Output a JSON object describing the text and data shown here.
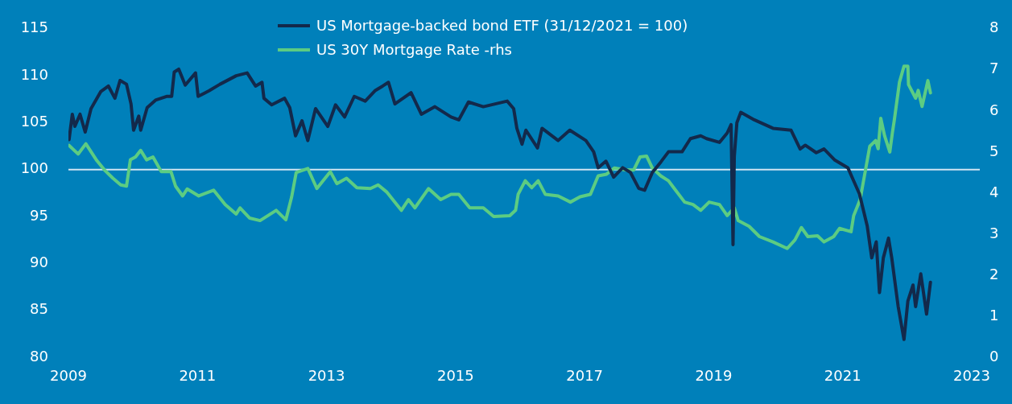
{
  "chart_data": {
    "type": "line",
    "legend": "top",
    "grid": false,
    "marker": "none",
    "line_style": "solid",
    "xlim": [
      2009,
      2023
    ],
    "xticks": [
      2009,
      2011,
      2013,
      2015,
      2017,
      2019,
      2021,
      2023
    ],
    "ylim": [
      80,
      115
    ],
    "yticks": [
      80,
      85,
      90,
      95,
      100,
      105,
      110,
      115
    ],
    "y2lim": [
      0,
      8
    ],
    "y2ticks": [
      0,
      1,
      2,
      3,
      4,
      5,
      6,
      7,
      8
    ],
    "ref_lines": [
      {
        "axis": "y",
        "value": 100,
        "color": "#d0e4f2"
      }
    ],
    "series": [
      {
        "name": "US Mortgage-backed bond ETF (31/12/2021 = 100)",
        "color": "#13294b",
        "x": [
          2009.01,
          2009.06,
          2009.1,
          2009.18,
          2009.26,
          2009.35,
          2009.5,
          2009.62,
          2009.72,
          2009.8,
          2009.9,
          2009.97,
          2010.01,
          2010.09,
          2010.12,
          2010.22,
          2010.35,
          2010.52,
          2010.6,
          2010.64,
          2010.71,
          2010.81,
          2010.97,
          2011.01,
          2011.18,
          2011.35,
          2011.6,
          2011.77,
          2011.9,
          2012.0,
          2012.03,
          2012.15,
          2012.35,
          2012.43,
          2012.52,
          2012.62,
          2012.71,
          2012.83,
          2013.02,
          2013.14,
          2013.28,
          2013.43,
          2013.6,
          2013.75,
          2013.87,
          2013.96,
          2014.06,
          2014.31,
          2014.47,
          2014.68,
          2014.93,
          2015.05,
          2015.2,
          2015.43,
          2015.8,
          2015.9,
          2015.95,
          2016.03,
          2016.09,
          2016.27,
          2016.34,
          2016.59,
          2016.77,
          2017.02,
          2017.14,
          2017.21,
          2017.33,
          2017.45,
          2017.59,
          2017.71,
          2017.84,
          2017.93,
          2018.05,
          2018.18,
          2018.3,
          2018.51,
          2018.64,
          2018.8,
          2018.89,
          2019.09,
          2019.21,
          2019.27,
          2019.3,
          2019.32,
          2019.36,
          2019.42,
          2019.63,
          2019.92,
          2020.2,
          2020.34,
          2020.42,
          2020.59,
          2020.71,
          2020.88,
          2021.08,
          2021.17,
          2021.26,
          2021.38,
          2021.45,
          2021.52,
          2021.57,
          2021.63,
          2021.71,
          2021.76,
          2021.86,
          2021.95,
          2022.01,
          2022.09,
          2022.13,
          2022.21,
          2022.3,
          2022.36
        ],
        "values": [
          103.2,
          105.9,
          104.6,
          105.9,
          104.0,
          106.5,
          108.3,
          108.9,
          107.6,
          109.5,
          109.1,
          107.0,
          104.2,
          105.7,
          104.2,
          106.6,
          107.4,
          107.8,
          107.8,
          110.4,
          110.7,
          109.0,
          110.3,
          107.8,
          108.4,
          109.1,
          110.0,
          110.3,
          108.9,
          109.3,
          107.6,
          106.9,
          107.6,
          106.6,
          103.6,
          105.2,
          103.1,
          106.5,
          104.6,
          106.9,
          105.6,
          107.8,
          107.3,
          108.4,
          108.9,
          109.3,
          107.0,
          108.2,
          105.9,
          106.7,
          105.6,
          105.3,
          107.2,
          106.7,
          107.3,
          106.5,
          104.4,
          102.7,
          104.2,
          102.3,
          104.4,
          103.1,
          104.2,
          103.1,
          101.9,
          100.2,
          100.9,
          99.2,
          100.2,
          99.7,
          98.0,
          97.8,
          99.7,
          100.8,
          101.9,
          101.9,
          103.3,
          103.6,
          103.3,
          102.9,
          103.9,
          104.8,
          92.0,
          101.4,
          105.0,
          106.1,
          105.3,
          104.4,
          104.2,
          102.2,
          102.6,
          101.8,
          102.2,
          101.0,
          100.2,
          98.8,
          97.4,
          94.0,
          90.6,
          92.3,
          86.9,
          90.6,
          92.7,
          90.6,
          85.4,
          81.9,
          86.0,
          87.7,
          85.4,
          88.9,
          84.6,
          88.0
        ]
      },
      {
        "name": "US 30Y Mortgage Rate -rhs",
        "color": "#5ccc82",
        "axis": "y2",
        "x": [
          2009.01,
          2009.15,
          2009.27,
          2009.44,
          2009.56,
          2009.69,
          2009.81,
          2009.9,
          2009.96,
          2010.04,
          2010.12,
          2010.21,
          2010.31,
          2010.44,
          2010.59,
          2010.66,
          2010.77,
          2010.84,
          2011.02,
          2011.25,
          2011.43,
          2011.6,
          2011.66,
          2011.81,
          2011.97,
          2012.22,
          2012.37,
          2012.46,
          2012.53,
          2012.71,
          2012.85,
          2013.06,
          2013.16,
          2013.31,
          2013.47,
          2013.68,
          2013.8,
          2013.93,
          2014.16,
          2014.27,
          2014.37,
          2014.58,
          2014.77,
          2014.93,
          2015.05,
          2015.22,
          2015.43,
          2015.59,
          2015.84,
          2015.93,
          2015.97,
          2016.08,
          2016.18,
          2016.28,
          2016.39,
          2016.59,
          2016.78,
          2016.93,
          2017.09,
          2017.21,
          2017.34,
          2017.46,
          2017.64,
          2017.76,
          2017.86,
          2017.96,
          2018.05,
          2018.18,
          2018.3,
          2018.39,
          2018.55,
          2018.68,
          2018.8,
          2018.93,
          2019.09,
          2019.21,
          2019.32,
          2019.38,
          2019.55,
          2019.71,
          2019.92,
          2020.14,
          2020.26,
          2020.36,
          2020.46,
          2020.61,
          2020.71,
          2020.86,
          2020.95,
          2021.13,
          2021.17,
          2021.27,
          2021.36,
          2021.42,
          2021.51,
          2021.55,
          2021.59,
          2021.65,
          2021.73,
          2021.77,
          2021.8,
          2021.88,
          2021.95,
          2022.01,
          2022.02,
          2022.13,
          2022.17,
          2022.23,
          2022.32,
          2022.36
        ],
        "values": [
          5.16,
          4.95,
          5.2,
          4.79,
          4.56,
          4.36,
          4.2,
          4.17,
          4.81,
          4.88,
          5.04,
          4.81,
          4.88,
          4.52,
          4.52,
          4.17,
          3.93,
          4.1,
          3.93,
          4.07,
          3.72,
          3.49,
          3.64,
          3.39,
          3.33,
          3.58,
          3.35,
          3.91,
          4.5,
          4.6,
          4.11,
          4.52,
          4.23,
          4.36,
          4.13,
          4.11,
          4.2,
          4.03,
          3.58,
          3.84,
          3.64,
          4.11,
          3.84,
          3.97,
          3.97,
          3.64,
          3.64,
          3.43,
          3.45,
          3.58,
          3.97,
          4.3,
          4.13,
          4.3,
          3.97,
          3.93,
          3.78,
          3.91,
          3.97,
          4.42,
          4.46,
          4.61,
          4.56,
          4.56,
          4.88,
          4.9,
          4.61,
          4.42,
          4.3,
          4.11,
          3.78,
          3.72,
          3.58,
          3.78,
          3.72,
          3.45,
          3.64,
          3.33,
          3.19,
          2.94,
          2.81,
          2.65,
          2.86,
          3.16,
          2.94,
          2.96,
          2.81,
          2.94,
          3.14,
          3.06,
          3.45,
          3.84,
          4.62,
          5.14,
          5.28,
          5.08,
          5.82,
          5.39,
          5.0,
          5.47,
          5.78,
          6.7,
          7.09,
          7.09,
          6.64,
          6.31,
          6.5,
          6.11,
          6.74,
          6.44
        ]
      }
    ]
  }
}
